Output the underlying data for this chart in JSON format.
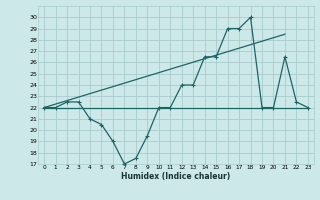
{
  "xlabel": "Humidex (Indice chaleur)",
  "ylabel": "",
  "bg_color": "#cde8e8",
  "grid_color": "#a8cccc",
  "line_color": "#1a6666",
  "xlim": [
    -0.5,
    23.5
  ],
  "ylim": [
    17,
    31
  ],
  "xticks": [
    0,
    1,
    2,
    3,
    4,
    5,
    6,
    7,
    8,
    9,
    10,
    11,
    12,
    13,
    14,
    15,
    16,
    17,
    18,
    19,
    20,
    21,
    22,
    23
  ],
  "yticks": [
    17,
    18,
    19,
    20,
    21,
    22,
    23,
    24,
    25,
    26,
    27,
    28,
    29,
    30
  ],
  "curve1_x": [
    0,
    1,
    2,
    3,
    4,
    5,
    6,
    7,
    8,
    9,
    10,
    11,
    12,
    13,
    14,
    15,
    16,
    17,
    18,
    19,
    20,
    21,
    22,
    23
  ],
  "curve1_y": [
    22,
    22,
    22.5,
    22.5,
    21,
    20.5,
    19,
    17,
    17.5,
    19.5,
    22,
    22,
    24,
    24,
    26.5,
    26.5,
    29,
    29,
    30,
    22,
    22,
    26.5,
    22.5,
    22
  ],
  "curve2_x": [
    0,
    21
  ],
  "curve2_y": [
    22,
    28.5
  ],
  "curve3_x": [
    0,
    23
  ],
  "curve3_y": [
    22,
    22
  ]
}
